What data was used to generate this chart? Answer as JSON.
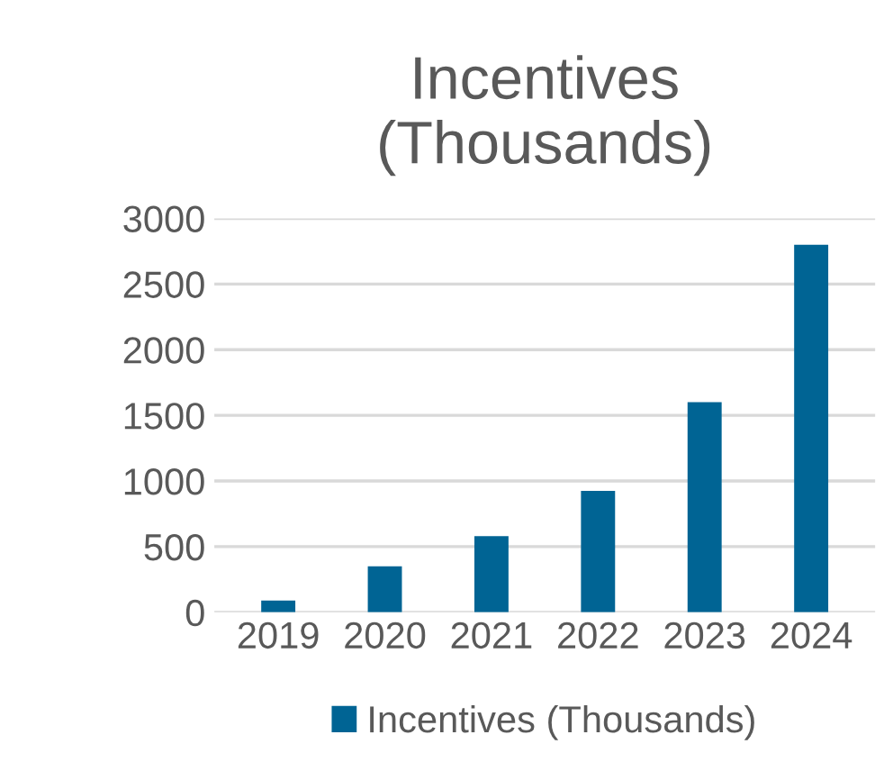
{
  "chart_data": {
    "type": "bar",
    "title": "Incentives\n(Thousands)",
    "categories": [
      "2019",
      "2020",
      "2021",
      "2022",
      "2023",
      "2024"
    ],
    "series": [
      {
        "name": "Incentives (Thousands)",
        "color": "#006494",
        "values": [
          90,
          350,
          580,
          925,
          1600,
          2800
        ]
      }
    ],
    "ylim": [
      0,
      3000
    ],
    "yticks": [
      0,
      500,
      1000,
      1500,
      2000,
      2500,
      3000
    ],
    "grid": "y",
    "legend": "bottom"
  }
}
